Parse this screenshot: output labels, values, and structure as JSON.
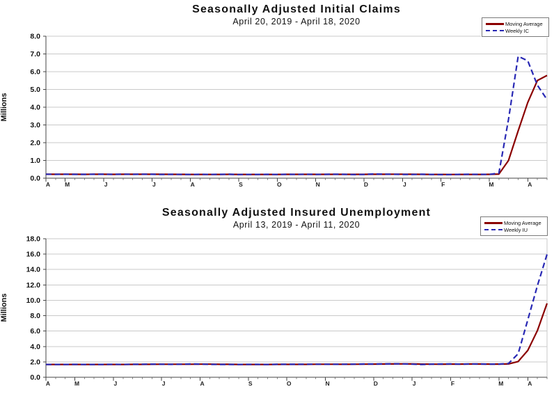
{
  "page": {
    "background": "#ffffff"
  },
  "chart_data": [
    {
      "type": "line",
      "title": "Seasonally Adjusted Initial Claims",
      "subtitle": "April 20, 2019 - April 18, 2020",
      "ylabel": "Millions",
      "ylim": [
        0,
        8
      ],
      "ytick_step": 1,
      "grid": "horizontal",
      "legend_position": "top-right",
      "x_unit": "weeks",
      "x_tick_labels": [
        "A",
        "M",
        "J",
        "J",
        "A",
        "S",
        "O",
        "N",
        "D",
        "J",
        "F",
        "M",
        "A"
      ],
      "x_tick_weeks": [
        0,
        2,
        6,
        11,
        15,
        20,
        24,
        28,
        33,
        37,
        41,
        46,
        50
      ],
      "series": [
        {
          "name": "Moving Average",
          "color": "#8b0000",
          "line_style": "solid",
          "values": [
            0.218,
            0.218,
            0.219,
            0.218,
            0.217,
            0.218,
            0.218,
            0.217,
            0.219,
            0.219,
            0.22,
            0.221,
            0.218,
            0.216,
            0.214,
            0.211,
            0.213,
            0.212,
            0.213,
            0.215,
            0.213,
            0.212,
            0.211,
            0.212,
            0.213,
            0.214,
            0.214,
            0.215,
            0.214,
            0.215,
            0.216,
            0.216,
            0.215,
            0.214,
            0.218,
            0.22,
            0.222,
            0.222,
            0.221,
            0.216,
            0.213,
            0.21,
            0.209,
            0.21,
            0.211,
            0.213,
            0.215,
            0.232,
            0.998,
            2.666,
            4.267,
            5.507,
            5.787
          ]
        },
        {
          "name": "Weekly IC",
          "color": "#2828b4",
          "line_style": "dashed",
          "values": [
            0.222,
            0.216,
            0.218,
            0.217,
            0.214,
            0.221,
            0.219,
            0.216,
            0.222,
            0.217,
            0.224,
            0.221,
            0.208,
            0.217,
            0.211,
            0.209,
            0.217,
            0.213,
            0.216,
            0.218,
            0.204,
            0.213,
            0.21,
            0.215,
            0.212,
            0.214,
            0.212,
            0.218,
            0.211,
            0.215,
            0.223,
            0.216,
            0.203,
            0.213,
            0.235,
            0.222,
            0.22,
            0.212,
            0.207,
            0.22,
            0.212,
            0.201,
            0.205,
            0.215,
            0.22,
            0.217,
            0.211,
            0.282,
            3.307,
            6.867,
            6.615,
            5.237,
            4.427
          ]
        }
      ]
    },
    {
      "type": "line",
      "title": "Seasonally Adjusted Insured Unemployment",
      "subtitle": "April 13, 2019 - April 11, 2020",
      "ylabel": "Millions",
      "ylim": [
        0,
        18
      ],
      "ytick_step": 2,
      "grid": "horizontal",
      "legend_position": "top-right",
      "x_unit": "weeks",
      "x_tick_labels": [
        "A",
        "M",
        "J",
        "J",
        "A",
        "S",
        "O",
        "N",
        "D",
        "J",
        "F",
        "M",
        "A"
      ],
      "x_tick_weeks": [
        0,
        3,
        7,
        12,
        16,
        21,
        25,
        29,
        34,
        38,
        42,
        47,
        50
      ],
      "series": [
        {
          "name": "Moving Average",
          "color": "#8b0000",
          "line_style": "solid",
          "values": [
            1.66,
            1.662,
            1.664,
            1.664,
            1.666,
            1.663,
            1.662,
            1.665,
            1.664,
            1.67,
            1.673,
            1.684,
            1.692,
            1.691,
            1.688,
            1.695,
            1.701,
            1.696,
            1.685,
            1.679,
            1.667,
            1.666,
            1.668,
            1.666,
            1.67,
            1.673,
            1.674,
            1.677,
            1.687,
            1.692,
            1.689,
            1.686,
            1.691,
            1.702,
            1.71,
            1.722,
            1.728,
            1.733,
            1.728,
            1.71,
            1.7,
            1.695,
            1.713,
            1.712,
            1.719,
            1.716,
            1.711,
            1.713,
            1.73,
            2.042,
            3.483,
            6.066,
            9.599
          ]
        },
        {
          "name": "Weekly IU",
          "color": "#2828b4",
          "line_style": "dashed",
          "values": [
            1.654,
            1.662,
            1.667,
            1.673,
            1.662,
            1.656,
            1.662,
            1.678,
            1.66,
            1.682,
            1.692,
            1.7,
            1.694,
            1.676,
            1.687,
            1.722,
            1.712,
            1.674,
            1.668,
            1.662,
            1.666,
            1.669,
            1.674,
            1.655,
            1.682,
            1.679,
            1.682,
            1.691,
            1.692,
            1.693,
            1.68,
            1.692,
            1.701,
            1.716,
            1.722,
            1.728,
            1.745,
            1.737,
            1.703,
            1.655,
            1.698,
            1.723,
            1.726,
            1.701,
            1.724,
            1.715,
            1.702,
            1.712,
            1.784,
            3.059,
            7.446,
            11.914,
            15.976
          ]
        }
      ]
    }
  ]
}
